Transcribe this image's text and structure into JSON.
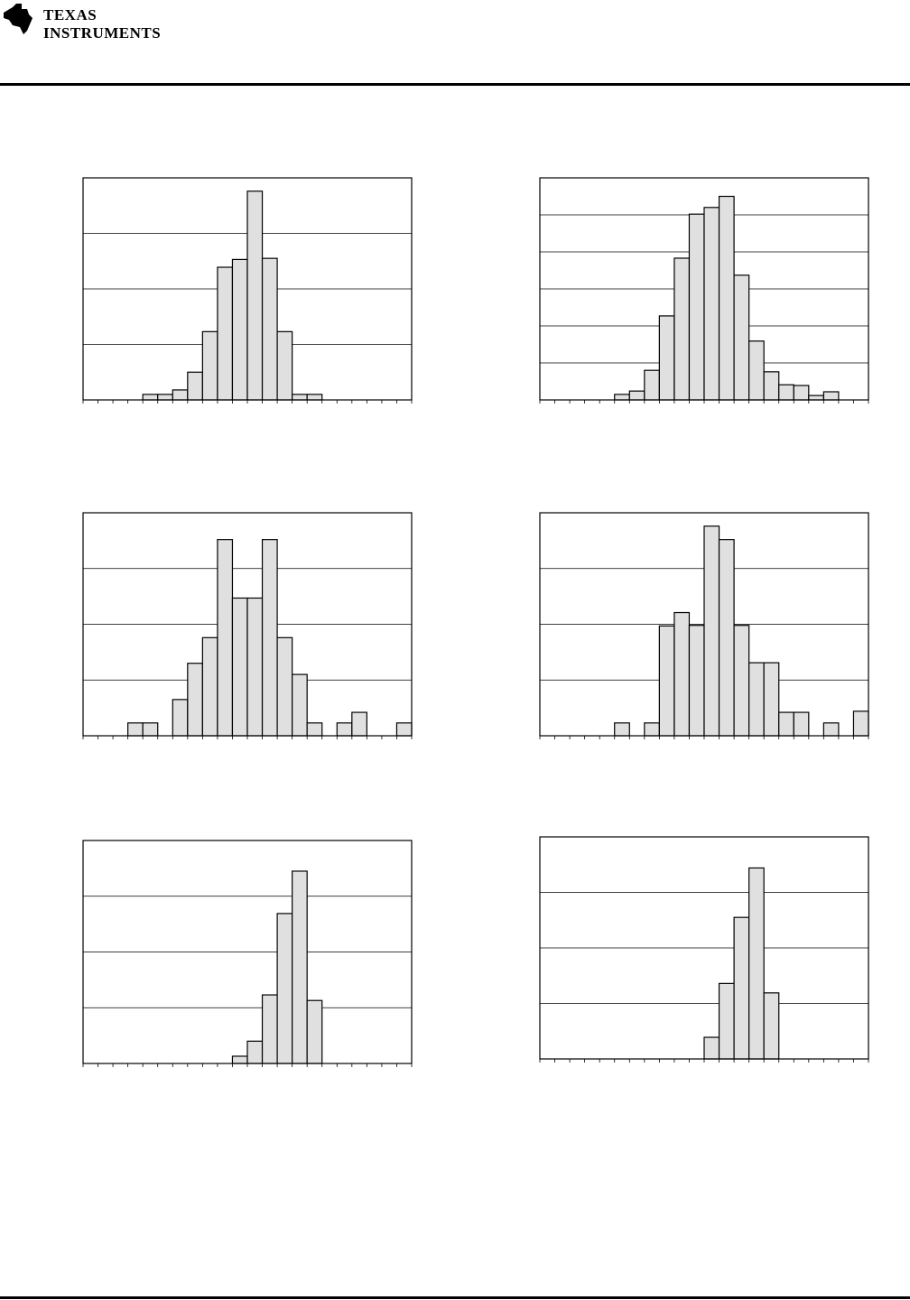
{
  "header": {
    "logo_lines": [
      "TEXAS",
      "INSTRUMENTS"
    ]
  },
  "chart_data": [
    {
      "type": "histogram",
      "color": "#e0e0e0",
      "grid": true,
      "bins": [
        0,
        1,
        2,
        3,
        4,
        5,
        6,
        7,
        8,
        9,
        10,
        11,
        12,
        13,
        14,
        15,
        16,
        17,
        18,
        19,
        20,
        21,
        22
      ],
      "values": [
        0,
        0,
        0,
        0,
        0.1,
        0.1,
        0.18,
        0.5,
        1.23,
        2.39,
        2.53,
        3.76,
        2.55,
        1.23,
        0.1,
        0.1,
        0,
        0,
        0,
        0,
        0,
        0
      ],
      "xlim": [
        0,
        22
      ],
      "ylim": [
        0,
        4
      ],
      "yticks": [
        0,
        1,
        2,
        3,
        4
      ]
    },
    {
      "type": "histogram",
      "color": "#e0e0e0",
      "grid": true,
      "bins": [
        0,
        1,
        2,
        3,
        4,
        5,
        6,
        7,
        8,
        9,
        10,
        11,
        12,
        13,
        14,
        15,
        16,
        17,
        18,
        19,
        20,
        21,
        22
      ],
      "values": [
        0,
        0,
        0,
        0,
        0,
        0.15,
        0.24,
        0.8,
        2.27,
        3.83,
        5.02,
        5.2,
        5.5,
        3.37,
        1.59,
        0.76,
        0.41,
        0.39,
        0.12,
        0.22,
        0,
        0
      ],
      "xlim": [
        0,
        22
      ],
      "ylim": [
        0,
        6
      ],
      "yticks": [
        0,
        1,
        2,
        3,
        4,
        5,
        6
      ]
    },
    {
      "type": "histogram",
      "color": "#e0e0e0",
      "grid": true,
      "bins": [
        0,
        1,
        2,
        3,
        4,
        5,
        6,
        7,
        8,
        9,
        10,
        11,
        12,
        13,
        14,
        15,
        16,
        17,
        18,
        19,
        20,
        21,
        22
      ],
      "values": [
        0,
        0,
        0,
        0.23,
        0.23,
        0,
        0.65,
        1.3,
        1.76,
        3.52,
        2.47,
        2.47,
        3.52,
        1.76,
        1.1,
        0.23,
        0,
        0.23,
        0.42,
        0,
        0,
        0.23
      ],
      "xlim": [
        0,
        22
      ],
      "ylim": [
        0,
        4
      ],
      "yticks": [
        0,
        1,
        2,
        3,
        4
      ]
    },
    {
      "type": "histogram",
      "color": "#e0e0e0",
      "grid": true,
      "bins": [
        0,
        1,
        2,
        3,
        4,
        5,
        6,
        7,
        8,
        9,
        10,
        11,
        12,
        13,
        14,
        15,
        16,
        17,
        18,
        19,
        20,
        21,
        22
      ],
      "values": [
        0,
        0,
        0,
        0,
        0,
        0.23,
        0,
        0.23,
        1.97,
        2.21,
        1.98,
        3.76,
        3.52,
        1.98,
        1.31,
        1.31,
        0.42,
        0.42,
        0,
        0.23,
        0,
        0.44
      ],
      "xlim": [
        0,
        22
      ],
      "ylim": [
        0,
        4
      ],
      "yticks": [
        0,
        1,
        2,
        3,
        4
      ]
    },
    {
      "type": "histogram",
      "color": "#e0e0e0",
      "grid": true,
      "bins": [
        0,
        1,
        2,
        3,
        4,
        5,
        6,
        7,
        8,
        9,
        10,
        11,
        12,
        13,
        14,
        15,
        16,
        17,
        18,
        19,
        20,
        21,
        22
      ],
      "values": [
        0,
        0,
        0,
        0,
        0,
        0,
        0,
        0,
        0,
        0,
        0.13,
        0.4,
        1.23,
        2.69,
        3.45,
        1.13,
        0,
        0,
        0,
        0,
        0,
        0
      ],
      "xlim": [
        0,
        22
      ],
      "ylim": [
        0,
        4
      ],
      "yticks": [
        0,
        1,
        2,
        3,
        4
      ]
    },
    {
      "type": "histogram",
      "color": "#e0e0e0",
      "grid": true,
      "bins": [
        0,
        1,
        2,
        3,
        4,
        5,
        6,
        7,
        8,
        9,
        10,
        11,
        12,
        13,
        14,
        15,
        16,
        17,
        18,
        19,
        20,
        21,
        22
      ],
      "values": [
        0,
        0,
        0,
        0,
        0,
        0,
        0,
        0,
        0,
        0,
        0,
        0.39,
        1.36,
        2.55,
        3.44,
        1.19,
        0,
        0,
        0,
        0,
        0,
        0
      ],
      "xlim": [
        0,
        22
      ],
      "ylim": [
        0,
        4
      ],
      "yticks": [
        0,
        1,
        2,
        3,
        4
      ]
    }
  ]
}
